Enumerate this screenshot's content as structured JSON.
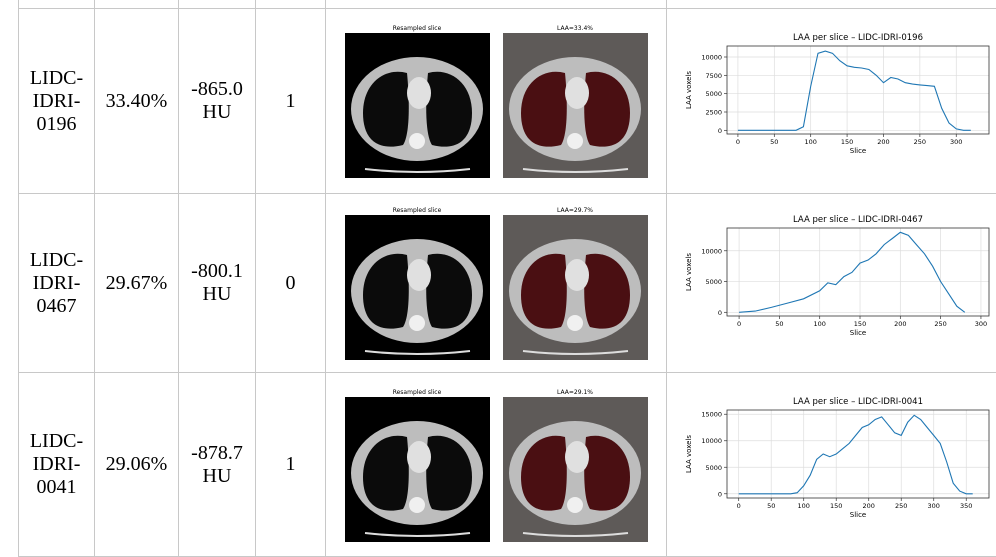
{
  "table": {
    "rows": [
      {
        "id": "LIDC-IDRI-0196",
        "laa": "33.40%",
        "mean_hu": "-865.0 HU",
        "label": "1",
        "images": [
          "Resampled slice",
          "LAA=33.4%"
        ],
        "chart": {
          "type": "line",
          "title": "LAA per slice – LIDC-IDRI-0196",
          "x_label": "Slice",
          "y_label": "LAA voxels",
          "color": "#1f77b4",
          "grid": true,
          "x": [
            0,
            20,
            40,
            60,
            80,
            90,
            100,
            110,
            120,
            130,
            140,
            150,
            160,
            170,
            180,
            190,
            200,
            210,
            220,
            230,
            240,
            250,
            260,
            270,
            280,
            290,
            300,
            310,
            320
          ],
          "values": [
            0,
            0,
            0,
            0,
            0,
            500,
            6000,
            10500,
            10800,
            10500,
            9500,
            8800,
            8600,
            8500,
            8300,
            7500,
            6500,
            7200,
            7000,
            6500,
            6300,
            6200,
            6100,
            6000,
            3000,
            1000,
            200,
            0,
            0
          ],
          "xlim": [
            -15,
            345
          ],
          "ylim": [
            -500,
            11500
          ],
          "xticks": [
            0,
            50,
            100,
            150,
            200,
            250,
            300
          ],
          "yticks": [
            0,
            2500,
            5000,
            7500,
            10000
          ]
        }
      },
      {
        "id": "LIDC-IDRI-0467",
        "laa": "29.67%",
        "mean_hu": "-800.1 HU",
        "label": "0",
        "images": [
          "Resampled slice",
          "LAA=29.7%"
        ],
        "chart": {
          "type": "line",
          "title": "LAA per slice – LIDC-IDRI-0467",
          "x_label": "Slice",
          "y_label": "LAA voxels",
          "color": "#1f77b4",
          "grid": true,
          "x": [
            0,
            20,
            40,
            60,
            80,
            100,
            110,
            120,
            130,
            140,
            150,
            160,
            170,
            180,
            190,
            200,
            210,
            220,
            230,
            240,
            250,
            260,
            270,
            280
          ],
          "values": [
            0,
            200,
            800,
            1500,
            2200,
            3500,
            4800,
            4500,
            5800,
            6500,
            8000,
            8500,
            9500,
            11000,
            12000,
            13000,
            12500,
            11000,
            9500,
            7500,
            5000,
            3000,
            1000,
            0
          ],
          "xlim": [
            -15,
            310
          ],
          "ylim": [
            -600,
            13700
          ],
          "xticks": [
            0,
            50,
            100,
            150,
            200,
            250,
            300
          ],
          "yticks": [
            0,
            5000,
            10000
          ]
        }
      },
      {
        "id": "LIDC-IDRI-0041",
        "laa": "29.06%",
        "mean_hu": "-878.7 HU",
        "label": "1",
        "images": [
          "Resampled slice",
          "LAA=29.1%"
        ],
        "chart": {
          "type": "line",
          "title": "LAA per slice – LIDC-IDRI-0041",
          "x_label": "Slice",
          "y_label": "LAA voxels",
          "color": "#1f77b4",
          "grid": true,
          "x": [
            0,
            40,
            80,
            90,
            100,
            110,
            120,
            130,
            140,
            150,
            160,
            170,
            180,
            190,
            200,
            210,
            220,
            230,
            240,
            250,
            260,
            270,
            280,
            290,
            300,
            310,
            320,
            330,
            340,
            350,
            360
          ],
          "values": [
            0,
            0,
            0,
            200,
            1500,
            3500,
            6500,
            7500,
            7000,
            7500,
            8500,
            9500,
            11000,
            12500,
            13000,
            14000,
            14500,
            13000,
            11500,
            11000,
            13500,
            14800,
            14000,
            12500,
            11000,
            9500,
            6000,
            2000,
            500,
            0,
            0
          ],
          "xlim": [
            -18,
            385
          ],
          "ylim": [
            -800,
            15800
          ],
          "xticks": [
            0,
            50,
            100,
            150,
            200,
            250,
            300,
            350
          ],
          "yticks": [
            0,
            5000,
            10000,
            15000
          ]
        }
      }
    ]
  }
}
